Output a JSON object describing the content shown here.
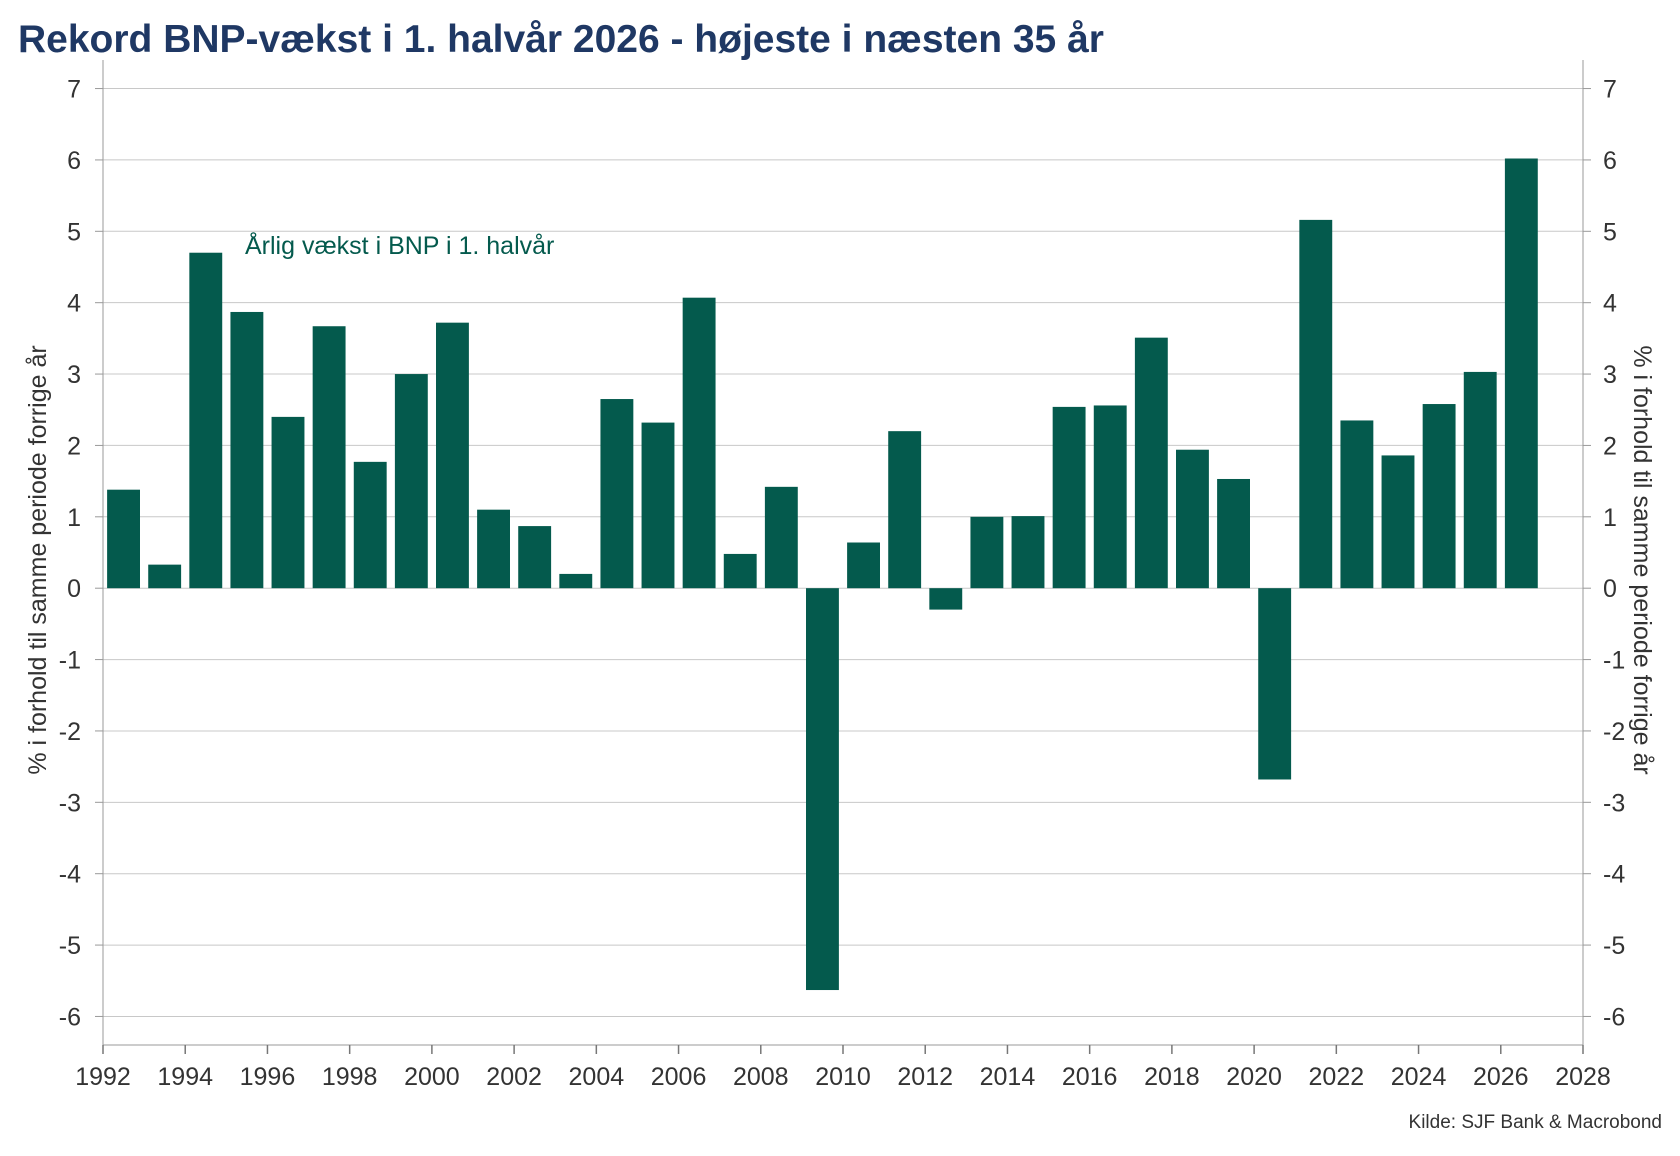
{
  "chart_data": {
    "type": "bar",
    "title": "Rekord BNP-vækst i 1. halvår 2026 - højeste i næsten 35 år",
    "ylabel_left": "% i forhold til samme periode forrige år",
    "ylabel_right": "% i forhold til samme periode forrige år",
    "annotation": "Årlig vækst i BNP i 1. halvår",
    "source": "Kilde: SJF Bank & Macrobond",
    "bar_color": "#045a4d",
    "annotation_color": "#045a4d",
    "title_color": "#1f3864",
    "ylim": [
      -6.4,
      7.4
    ],
    "yticks": [
      -6,
      -5,
      -4,
      -3,
      -2,
      -1,
      0,
      1,
      2,
      3,
      4,
      5,
      6,
      7
    ],
    "xlim": [
      1992,
      2028
    ],
    "xticks": [
      1992,
      1994,
      1996,
      1998,
      2000,
      2002,
      2004,
      2006,
      2008,
      2010,
      2012,
      2014,
      2016,
      2018,
      2020,
      2022,
      2024,
      2026,
      2028
    ],
    "grid": "horizontal",
    "x": [
      1992,
      1993,
      1994,
      1995,
      1996,
      1997,
      1998,
      1999,
      2000,
      2001,
      2002,
      2003,
      2004,
      2005,
      2006,
      2007,
      2008,
      2009,
      2010,
      2011,
      2012,
      2013,
      2014,
      2015,
      2016,
      2017,
      2018,
      2019,
      2020,
      2021,
      2022,
      2023,
      2024,
      2025,
      2026
    ],
    "values": [
      1.38,
      0.33,
      4.7,
      3.87,
      2.4,
      3.67,
      1.77,
      3.0,
      3.72,
      1.1,
      0.87,
      0.2,
      2.65,
      2.32,
      4.07,
      0.48,
      1.42,
      -5.63,
      0.64,
      2.2,
      -0.3,
      1.0,
      1.01,
      2.54,
      2.56,
      3.51,
      1.94,
      1.53,
      -2.68,
      5.16,
      2.35,
      1.86,
      2.58,
      3.03,
      6.02
    ]
  }
}
